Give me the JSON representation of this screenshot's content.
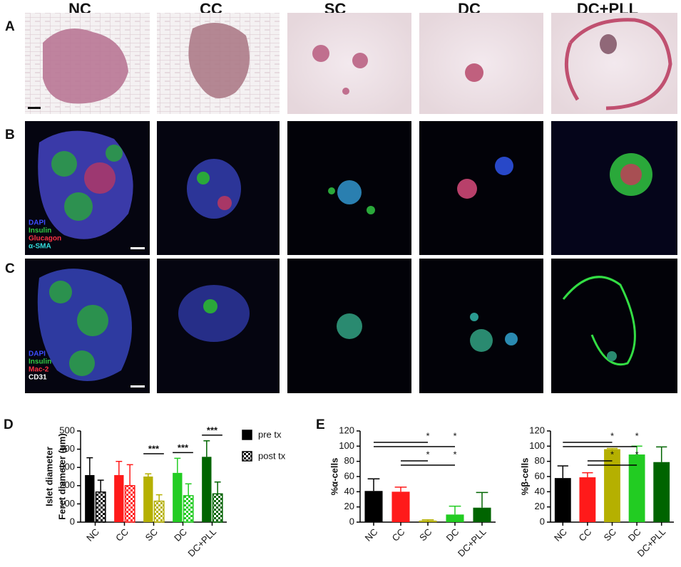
{
  "columns": [
    "NC",
    "CC",
    "SC",
    "DC",
    "DC+PLL"
  ],
  "rows": [
    {
      "letter": "A"
    },
    {
      "letter": "B",
      "stains": [
        "DAPI",
        "Insulin",
        "Glucagon",
        "α-SMA"
      ]
    },
    {
      "letter": "C",
      "stains": [
        "DAPI",
        "Insulin",
        "Mac-2",
        "CD31"
      ]
    }
  ],
  "chart_data": [
    {
      "type": "bar",
      "panel": "D",
      "y_label": [
        "Islet diameter",
        "Feret diameter (μm)"
      ],
      "categories": [
        "NC",
        "CC",
        "SC",
        "DC",
        "DC+PLL"
      ],
      "colors": [
        "#000000",
        "#ff1a1a",
        "#b5b000",
        "#22cc22",
        "#006400"
      ],
      "series": [
        {
          "name": "pre tx",
          "pattern": "solid",
          "values": [
            258,
            258,
            250,
            270,
            358
          ],
          "errors": [
            95,
            75,
            15,
            80,
            88
          ]
        },
        {
          "name": "post tx",
          "pattern": "checker",
          "values": [
            165,
            200,
            115,
            145,
            155
          ],
          "errors": [
            65,
            115,
            35,
            65,
            65
          ]
        }
      ],
      "annotations": [
        {
          "category": "SC",
          "label": "***"
        },
        {
          "category": "DC",
          "label": "***"
        },
        {
          "category": "DC+PLL",
          "label": "***"
        }
      ],
      "ylim": [
        0,
        500
      ],
      "yticks": [
        0,
        100,
        200,
        300,
        400,
        500
      ]
    },
    {
      "type": "bar",
      "panel": "E",
      "y_label": [
        "%α-cells"
      ],
      "categories": [
        "NC",
        "CC",
        "SC",
        "DC",
        "DC+PLL"
      ],
      "colors": [
        "#000000",
        "#ff1a1a",
        "#b5b000",
        "#22cc22",
        "#006400"
      ],
      "series": [
        {
          "values": [
            41,
            40,
            2,
            10,
            19
          ],
          "errors": [
            16,
            6,
            1,
            11,
            20
          ]
        }
      ],
      "comparisons": [
        {
          "from": "NC",
          "to": "SC",
          "label": "*"
        },
        {
          "from": "NC",
          "to": "DC",
          "label": "*"
        },
        {
          "from": "CC",
          "to": "SC",
          "label": "*"
        },
        {
          "from": "CC",
          "to": "DC",
          "label": "*"
        }
      ],
      "ylim": [
        0,
        120
      ],
      "yticks": [
        0,
        20,
        40,
        60,
        80,
        100,
        120
      ]
    },
    {
      "type": "bar",
      "y_label": [
        "%β-cells"
      ],
      "categories": [
        "NC",
        "CC",
        "SC",
        "DC",
        "DC+PLL"
      ],
      "colors": [
        "#000000",
        "#ff1a1a",
        "#b5b000",
        "#22cc22",
        "#006400"
      ],
      "series": [
        {
          "values": [
            58,
            59,
            96,
            89,
            79
          ],
          "errors": [
            16,
            6,
            1,
            11,
            20
          ]
        }
      ],
      "comparisons": [
        {
          "from": "NC",
          "to": "SC",
          "label": "*"
        },
        {
          "from": "NC",
          "to": "DC",
          "label": "*"
        },
        {
          "from": "CC",
          "to": "SC",
          "label": "*"
        },
        {
          "from": "CC",
          "to": "DC",
          "label": "*"
        }
      ],
      "ylim": [
        0,
        120
      ],
      "yticks": [
        0,
        20,
        40,
        60,
        80,
        100,
        120
      ]
    }
  ]
}
